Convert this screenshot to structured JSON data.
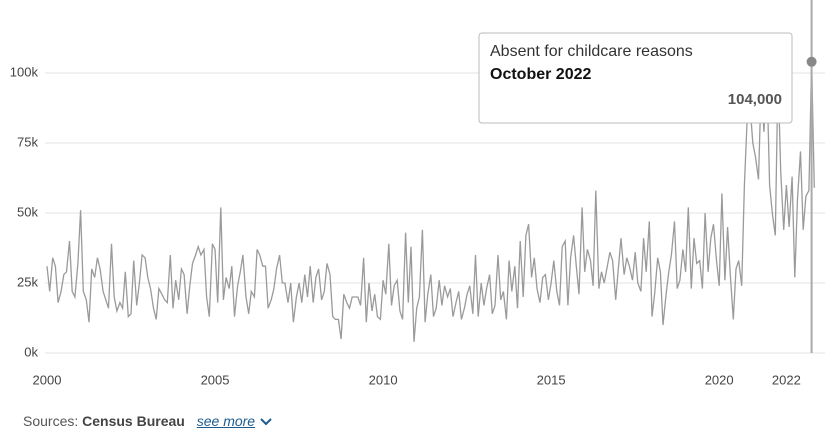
{
  "chart_data": {
    "type": "line",
    "x": [
      2000,
      2000.08,
      2000.17,
      2000.25,
      2000.33,
      2000.42,
      2000.5,
      2000.58,
      2000.67,
      2000.75,
      2000.83,
      2000.92,
      2001,
      2001.08,
      2001.17,
      2001.25,
      2001.33,
      2001.42,
      2001.5,
      2001.58,
      2001.67,
      2001.75,
      2001.83,
      2001.92,
      2002,
      2002.08,
      2002.17,
      2002.25,
      2002.33,
      2002.42,
      2002.5,
      2002.58,
      2002.67,
      2002.75,
      2002.83,
      2002.92,
      2003,
      2003.08,
      2003.17,
      2003.25,
      2003.33,
      2003.42,
      2003.5,
      2003.58,
      2003.67,
      2003.75,
      2003.83,
      2003.92,
      2004,
      2004.08,
      2004.17,
      2004.25,
      2004.33,
      2004.42,
      2004.5,
      2004.58,
      2004.67,
      2004.75,
      2004.83,
      2004.92,
      2005,
      2005.08,
      2005.17,
      2005.25,
      2005.33,
      2005.42,
      2005.5,
      2005.58,
      2005.67,
      2005.75,
      2005.83,
      2005.92,
      2006,
      2006.08,
      2006.17,
      2006.25,
      2006.33,
      2006.42,
      2006.5,
      2006.58,
      2006.67,
      2006.75,
      2006.83,
      2006.92,
      2007,
      2007.08,
      2007.17,
      2007.25,
      2007.33,
      2007.42,
      2007.5,
      2007.58,
      2007.67,
      2007.75,
      2007.83,
      2007.92,
      2008,
      2008.08,
      2008.17,
      2008.25,
      2008.33,
      2008.42,
      2008.5,
      2008.58,
      2008.67,
      2008.75,
      2008.83,
      2008.92,
      2009,
      2009.08,
      2009.17,
      2009.25,
      2009.33,
      2009.42,
      2009.5,
      2009.58,
      2009.67,
      2009.75,
      2009.83,
      2009.92,
      2010,
      2010.08,
      2010.17,
      2010.25,
      2010.33,
      2010.42,
      2010.5,
      2010.58,
      2010.67,
      2010.75,
      2010.83,
      2010.92,
      2011,
      2011.08,
      2011.17,
      2011.25,
      2011.33,
      2011.42,
      2011.5,
      2011.58,
      2011.67,
      2011.75,
      2011.83,
      2011.92,
      2012,
      2012.08,
      2012.17,
      2012.25,
      2012.33,
      2012.42,
      2012.5,
      2012.58,
      2012.67,
      2012.75,
      2012.83,
      2012.92,
      2013,
      2013.08,
      2013.17,
      2013.25,
      2013.33,
      2013.42,
      2013.5,
      2013.58,
      2013.67,
      2013.75,
      2013.83,
      2013.92,
      2014,
      2014.08,
      2014.17,
      2014.25,
      2014.33,
      2014.42,
      2014.5,
      2014.58,
      2014.67,
      2014.75,
      2014.83,
      2014.92,
      2015,
      2015.08,
      2015.17,
      2015.25,
      2015.33,
      2015.42,
      2015.5,
      2015.58,
      2015.67,
      2015.75,
      2015.83,
      2015.92,
      2016,
      2016.08,
      2016.17,
      2016.25,
      2016.33,
      2016.42,
      2016.5,
      2016.58,
      2016.67,
      2016.75,
      2016.83,
      2016.92,
      2017,
      2017.08,
      2017.17,
      2017.25,
      2017.33,
      2017.42,
      2017.5,
      2017.58,
      2017.67,
      2017.75,
      2017.83,
      2017.92,
      2018,
      2018.08,
      2018.17,
      2018.25,
      2018.33,
      2018.42,
      2018.5,
      2018.58,
      2018.67,
      2018.75,
      2018.83,
      2018.92,
      2019,
      2019.08,
      2019.17,
      2019.25,
      2019.33,
      2019.42,
      2019.5,
      2019.58,
      2019.67,
      2019.75,
      2019.83,
      2019.92,
      2020,
      2020.08,
      2020.17,
      2020.25,
      2020.33,
      2020.42,
      2020.5,
      2020.58,
      2020.67,
      2020.75,
      2020.83,
      2020.92,
      2021,
      2021.08,
      2021.17,
      2021.25,
      2021.33,
      2021.42,
      2021.5,
      2021.58,
      2021.67,
      2021.75,
      2021.83,
      2021.92,
      2022,
      2022.08,
      2022.17,
      2022.25,
      2022.33,
      2022.42,
      2022.5,
      2022.58,
      2022.67,
      2022.75,
      2022.83
    ],
    "values": [
      31000,
      22000,
      34000,
      31000,
      18000,
      22000,
      28000,
      29000,
      40000,
      22000,
      20000,
      32000,
      51000,
      22000,
      19000,
      11000,
      30000,
      27000,
      34000,
      30000,
      22000,
      19000,
      16000,
      39000,
      20000,
      15000,
      18000,
      16000,
      29000,
      13000,
      14000,
      33000,
      17000,
      25000,
      35000,
      34000,
      27000,
      23000,
      16000,
      12000,
      23000,
      21000,
      19000,
      18000,
      35000,
      16000,
      26000,
      19000,
      30000,
      28000,
      14000,
      24000,
      32000,
      35000,
      38000,
      35000,
      37000,
      20000,
      13000,
      39000,
      37000,
      18000,
      52000,
      19000,
      27000,
      23000,
      31000,
      13000,
      24000,
      29000,
      35000,
      20000,
      14000,
      22000,
      20000,
      37000,
      35000,
      31000,
      31000,
      16000,
      19000,
      23000,
      30000,
      35000,
      25000,
      25000,
      18000,
      25000,
      11000,
      20000,
      25000,
      18000,
      28000,
      20000,
      31000,
      18000,
      27000,
      30000,
      19000,
      22000,
      32000,
      28000,
      13000,
      12000,
      12000,
      5000,
      21000,
      18000,
      16000,
      20000,
      20000,
      20000,
      17000,
      34000,
      11000,
      25000,
      15000,
      21000,
      13000,
      12000,
      26000,
      21000,
      39000,
      17000,
      24000,
      26000,
      15000,
      12000,
      43000,
      18000,
      38000,
      4000,
      16000,
      20000,
      44000,
      11000,
      21000,
      28000,
      13000,
      16000,
      26000,
      17000,
      24000,
      20000,
      23000,
      13000,
      18000,
      22000,
      12000,
      16000,
      21000,
      24000,
      14000,
      35000,
      13000,
      25000,
      17000,
      23000,
      28000,
      14000,
      17000,
      35000,
      19000,
      22000,
      12000,
      33000,
      22000,
      31000,
      16000,
      40000,
      20000,
      42000,
      46000,
      27000,
      34000,
      23000,
      18000,
      27000,
      28000,
      19000,
      25000,
      33000,
      22000,
      17000,
      38000,
      40000,
      17000,
      34000,
      42000,
      31000,
      21000,
      52000,
      29000,
      37000,
      33000,
      24000,
      58000,
      23000,
      29000,
      25000,
      31000,
      36000,
      33000,
      19000,
      30000,
      41000,
      28000,
      34000,
      31000,
      26000,
      36000,
      25000,
      22000,
      41000,
      29000,
      47000,
      13000,
      21000,
      34000,
      29000,
      10000,
      21000,
      29000,
      35000,
      47000,
      23000,
      26000,
      37000,
      29000,
      52000,
      23000,
      41000,
      32000,
      33000,
      23000,
      50000,
      29000,
      41000,
      46000,
      33000,
      24000,
      57000,
      26000,
      45000,
      28000,
      12000,
      30000,
      33000,
      24000,
      60000,
      83000,
      88000,
      75000,
      70000,
      62000,
      96000,
      79000,
      99000,
      60000,
      50000,
      42000,
      100000,
      65000,
      44000,
      60000,
      45000,
      63000,
      27000,
      55000,
      72000,
      44000,
      56000,
      58000,
      104000,
      59000
    ],
    "color": "#9a9a9a",
    "xlim": [
      2000,
      2023
    ],
    "xticks": [
      2000,
      2005,
      2010,
      2015,
      2020,
      2022
    ],
    "ylim": [
      0,
      125000
    ],
    "yticks": [
      {
        "value": 0,
        "label": "0k"
      },
      {
        "value": 25000,
        "label": "25k"
      },
      {
        "value": 50000,
        "label": "50k"
      },
      {
        "value": 75000,
        "label": "75k"
      },
      {
        "value": 100000,
        "label": "100k"
      }
    ],
    "grid": true,
    "tooltip": {
      "title": "Absent for childcare reasons",
      "date": "October 2022",
      "x": 2022.75,
      "value": 104000,
      "value_label": "104,000"
    }
  },
  "sources": {
    "label": "Sources:",
    "name": "Census Bureau",
    "link": "see more"
  }
}
